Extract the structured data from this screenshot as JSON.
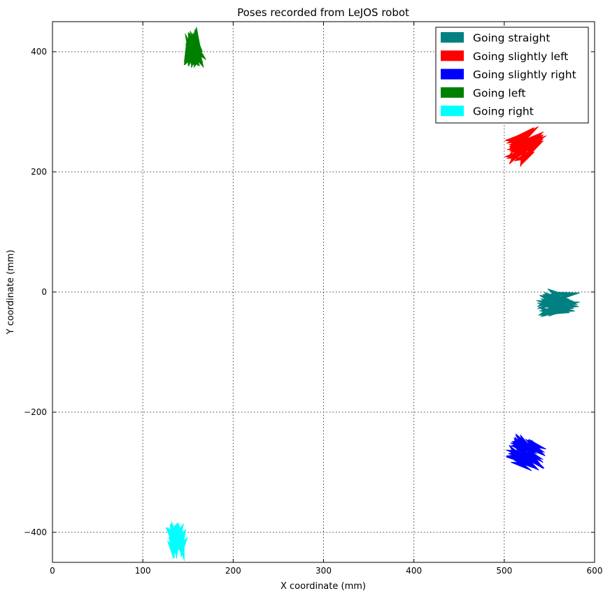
{
  "chart_data": {
    "type": "scatter",
    "title": "Poses recorded from LeJOS robot",
    "xlabel": "X coordinate (mm)",
    "ylabel": "Y coordinate (mm)",
    "xlim": [
      0,
      600
    ],
    "ylim": [
      -450,
      450
    ],
    "xticks": [
      0,
      100,
      200,
      300,
      400,
      500,
      600
    ],
    "yticks": [
      -400,
      -200,
      0,
      200,
      400
    ],
    "xtick_labels": [
      "0",
      "100",
      "200",
      "300",
      "400",
      "500",
      "600"
    ],
    "ytick_labels": [
      "−400",
      "−200",
      "0",
      "200",
      "400"
    ],
    "grid": true,
    "legend_position": "top-right",
    "marker": "arrow",
    "series": [
      {
        "name": "Going straight",
        "color": "#008080",
        "center": [
          560,
          -18
        ],
        "spread": [
          12,
          16
        ],
        "heading_deg": 0,
        "count": 30
      },
      {
        "name": "Going slightly left",
        "color": "#ff0000",
        "center": [
          524,
          245
        ],
        "spread": [
          12,
          22
        ],
        "heading_deg": 35,
        "count": 30
      },
      {
        "name": "Going slightly right",
        "color": "#0000ff",
        "center": [
          525,
          -268
        ],
        "spread": [
          12,
          20
        ],
        "heading_deg": -30,
        "count": 30
      },
      {
        "name": "Going left",
        "color": "#008000",
        "center": [
          156,
          408
        ],
        "spread": [
          6,
          16
        ],
        "heading_deg": 100,
        "count": 30
      },
      {
        "name": "Going right",
        "color": "#00ffff",
        "center": [
          138,
          -415
        ],
        "spread": [
          7,
          14
        ],
        "heading_deg": -90,
        "count": 30
      }
    ]
  }
}
